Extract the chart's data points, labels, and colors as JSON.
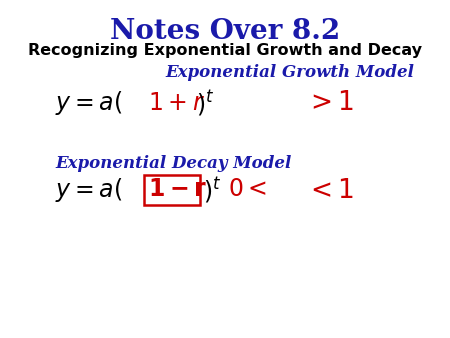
{
  "title": "Notes Over 8.2",
  "title_color": "#1a1aaa",
  "title_fontsize": 20,
  "subtitle": "Recognizing Exponential Growth and Decay",
  "subtitle_color": "#000000",
  "subtitle_fontsize": 11.5,
  "growth_label": "Exponential Growth Model",
  "growth_label_color": "#1a1aaa",
  "growth_label_fontsize": 12,
  "decay_label": "Exponential Decay Model",
  "decay_label_color": "#1a1aaa",
  "decay_label_fontsize": 12,
  "formula_black": "#000000",
  "formula_red": "#cc0000",
  "formula_fontsize": 17,
  "gt1_fontsize": 19,
  "bg_color": "#ffffff"
}
